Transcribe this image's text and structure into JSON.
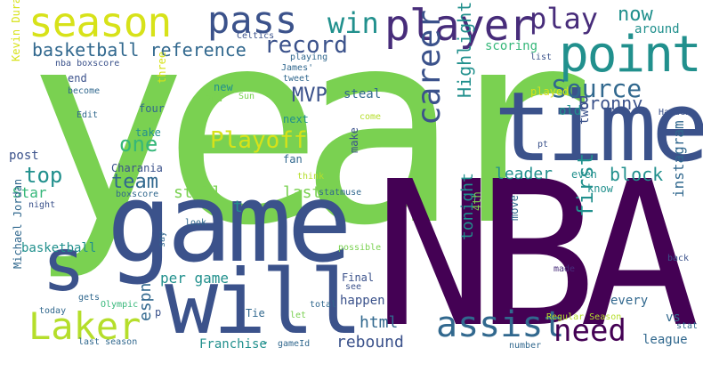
{
  "palette": {
    "green": "#7ad151",
    "lime": "#b5de2b",
    "yellow": "#d7e219",
    "teal": "#21908d",
    "teal_light": "#35b779",
    "blue": "#31688e",
    "navy": "#3b528b",
    "purple": "#472c7a",
    "dark": "#440154",
    "cyan": "#1f9e89"
  },
  "words": [
    {
      "text": "year"
    },
    {
      "text": "NBA"
    },
    {
      "text": "game"
    },
    {
      "text": "time"
    },
    {
      "text": "will"
    },
    {
      "text": "season"
    },
    {
      "text": "pass"
    },
    {
      "text": "player"
    },
    {
      "text": "point"
    },
    {
      "text": "win"
    },
    {
      "text": "play"
    },
    {
      "text": "now"
    },
    {
      "text": "record"
    },
    {
      "text": "basketball reference"
    },
    {
      "text": "Source"
    },
    {
      "text": "career"
    },
    {
      "text": "Laker"
    },
    {
      "text": "assist"
    },
    {
      "text": "need"
    },
    {
      "text": "s"
    },
    {
      "text": "Playoff"
    },
    {
      "text": "MVP"
    },
    {
      "text": "team"
    },
    {
      "text": "top"
    },
    {
      "text": "one"
    },
    {
      "text": "first"
    },
    {
      "text": "Highlight"
    },
    {
      "text": "Bronny"
    },
    {
      "text": "block"
    },
    {
      "text": "leader"
    },
    {
      "text": "still"
    },
    {
      "text": "last"
    },
    {
      "text": "Star"
    },
    {
      "text": "espn"
    },
    {
      "text": "per game"
    },
    {
      "text": "html"
    },
    {
      "text": "rebound"
    },
    {
      "text": "tonight"
    },
    {
      "text": "instagram"
    },
    {
      "text": "Franchise"
    },
    {
      "text": "Michael Jordan"
    },
    {
      "text": "basketball"
    },
    {
      "text": "post"
    },
    {
      "text": "Charania"
    },
    {
      "text": "steal"
    },
    {
      "text": "two"
    },
    {
      "text": "old"
    },
    {
      "text": "scoring"
    },
    {
      "text": "around"
    },
    {
      "text": "played"
    },
    {
      "text": "even"
    },
    {
      "text": "know"
    },
    {
      "text": "every"
    },
    {
      "text": "vs"
    },
    {
      "text": "league"
    },
    {
      "text": "stat"
    },
    {
      "text": "made"
    },
    {
      "text": "back"
    },
    {
      "text": "Harden"
    },
    {
      "text": "Kevin Durant"
    },
    {
      "text": "Celtics"
    },
    {
      "text": "nba boxscore"
    },
    {
      "text": "playing"
    },
    {
      "text": "James'"
    },
    {
      "text": "tweet"
    },
    {
      "text": "end"
    },
    {
      "text": "become"
    },
    {
      "text": "Edit"
    },
    {
      "text": "three"
    },
    {
      "text": "four"
    },
    {
      "text": "new"
    },
    {
      "text": "2nd"
    },
    {
      "text": "Sun"
    },
    {
      "text": "next"
    },
    {
      "text": "take"
    },
    {
      "text": "fan"
    },
    {
      "text": "make"
    },
    {
      "text": "come"
    },
    {
      "text": "think"
    },
    {
      "text": "statmuse"
    },
    {
      "text": "4th"
    },
    {
      "text": "move"
    },
    {
      "text": "possible"
    },
    {
      "text": "Final"
    },
    {
      "text": "see"
    },
    {
      "text": "happen"
    },
    {
      "text": "Tie"
    },
    {
      "text": "let"
    },
    {
      "text": "total"
    },
    {
      "text": "gets"
    },
    {
      "text": "Olympic"
    },
    {
      "text": "today"
    },
    {
      "text": "night"
    },
    {
      "text": "boxscore"
    },
    {
      "text": "look"
    },
    {
      "text": "say"
    },
    {
      "text": "p"
    },
    {
      "text": "last season"
    },
    {
      "text": "gameId"
    },
    {
      "text": "number"
    },
    {
      "text": "Regular Season"
    },
    {
      "text": "list"
    },
    {
      "text": "pt"
    },
    {
      "text": "t"
    },
    {
      "text": "-"
    }
  ]
}
